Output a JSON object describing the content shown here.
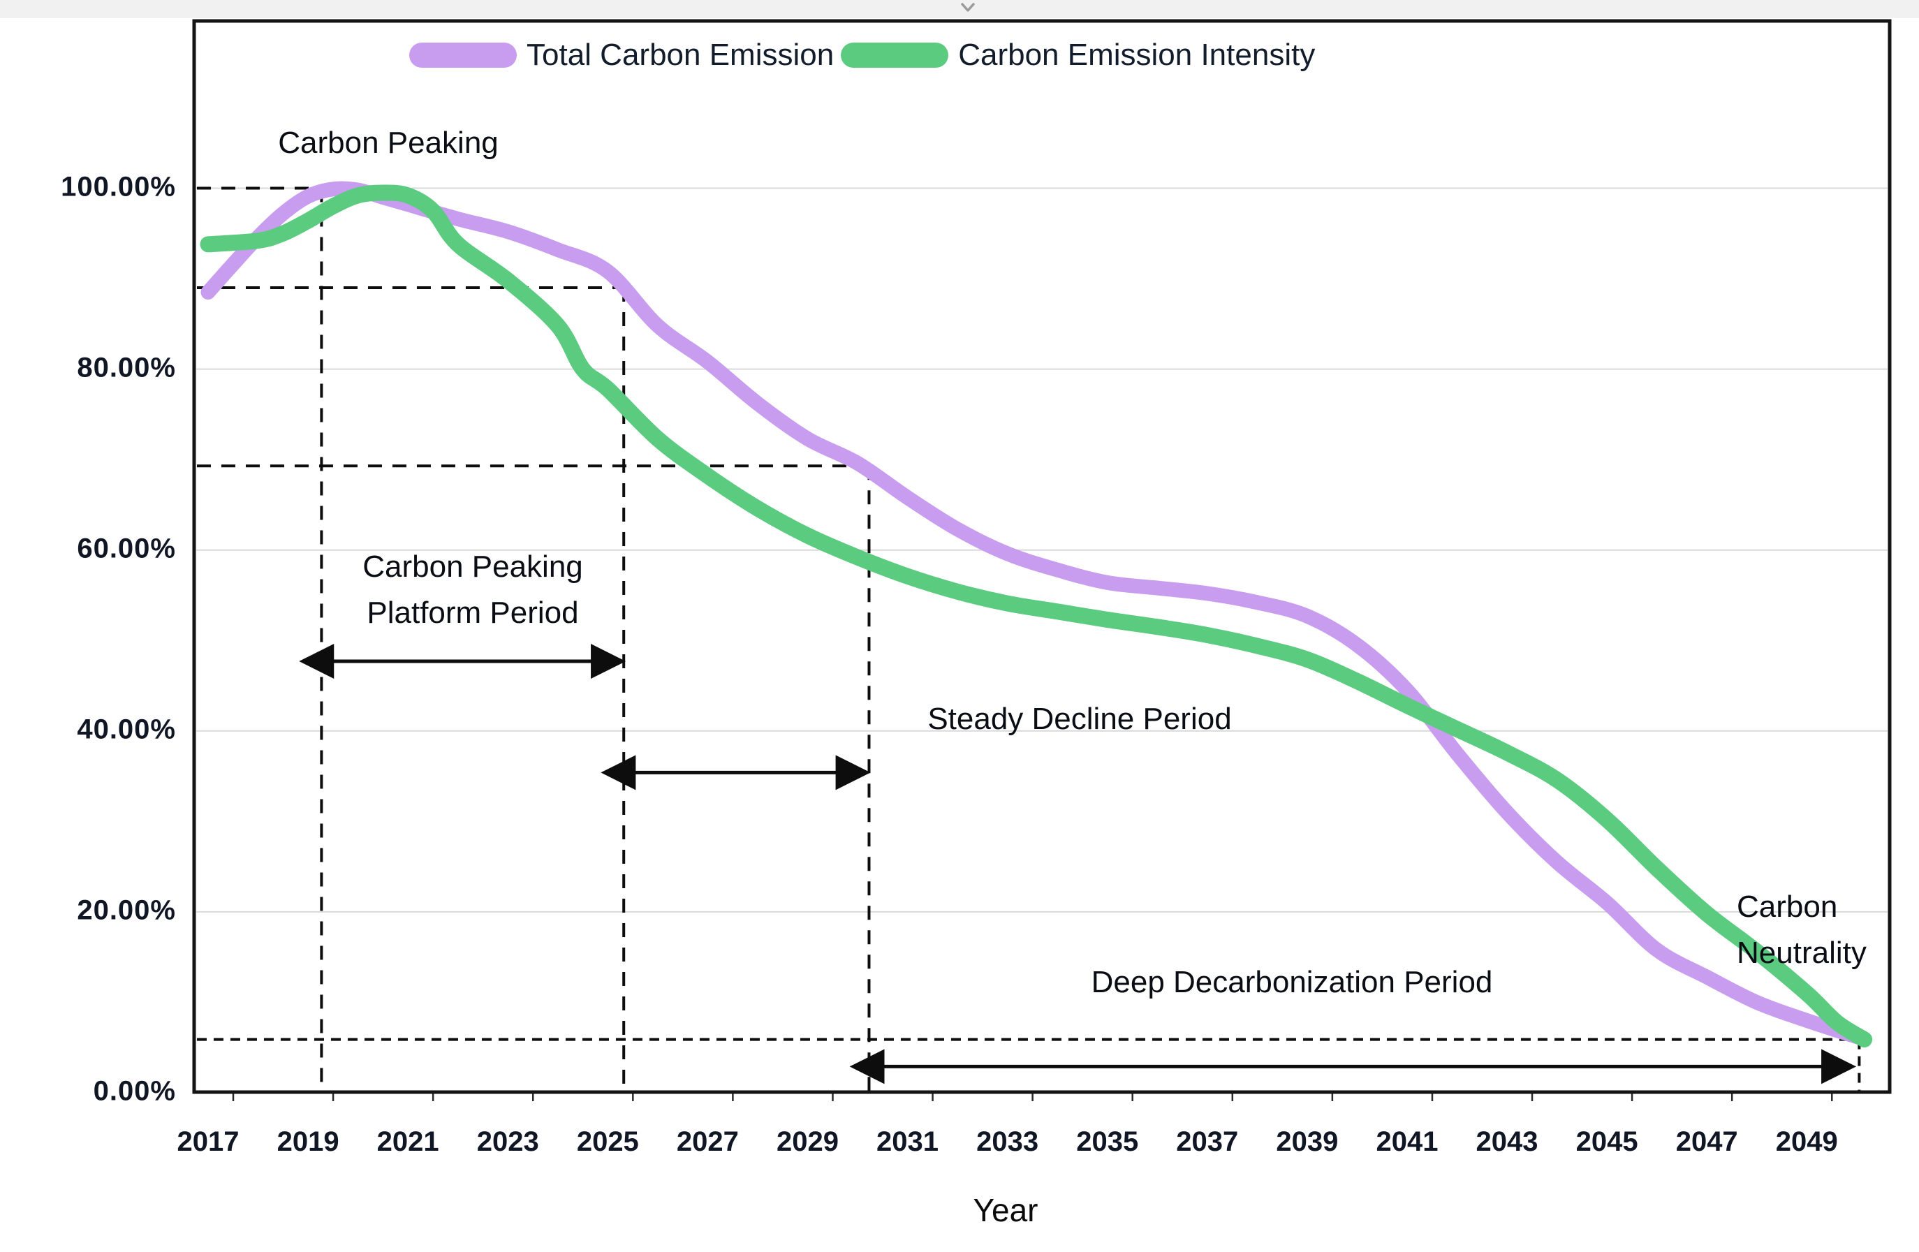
{
  "ui": {
    "chevron_icon": "chevron-down-icon"
  },
  "chart_data": {
    "type": "line",
    "title": "",
    "xlabel": "Year",
    "ylabel": "",
    "grid": "horizontal",
    "legend_position": "top-center",
    "xlim": [
      2016.72,
      2050.68
    ],
    "ylim": [
      0,
      118.5
    ],
    "x_ticks": [
      "2017",
      "2019",
      "2021",
      "2023",
      "2025",
      "2027",
      "2029",
      "2031",
      "2033",
      "2035",
      "2037",
      "2039",
      "2041",
      "2043",
      "2045",
      "2047",
      "2049"
    ],
    "x_tick_years": [
      2017,
      2019,
      2021,
      2023,
      2025,
      2027,
      2029,
      2031,
      2033,
      2035,
      2037,
      2039,
      2041,
      2043,
      2045,
      2047,
      2049
    ],
    "y_ticks": [
      "0.00%",
      "20.00%",
      "40.00%",
      "60.00%",
      "80.00%",
      "100.00%"
    ],
    "y_tick_values": [
      0,
      20,
      40,
      60,
      80,
      100
    ],
    "series": [
      {
        "name": "Total Carbon Emission",
        "color": "#c89df0",
        "points": [
          [
            2017,
            88.5
          ],
          [
            2017.5,
            91.6
          ],
          [
            2018,
            94.6
          ],
          [
            2018.5,
            97.2
          ],
          [
            2019,
            99.1
          ],
          [
            2019.5,
            99.9
          ],
          [
            2020,
            99.8
          ],
          [
            2020.5,
            99.0
          ],
          [
            2021,
            98.2
          ],
          [
            2022,
            96.6
          ],
          [
            2023,
            95.2
          ],
          [
            2024,
            93.2
          ],
          [
            2025,
            90.8
          ],
          [
            2026,
            84.8
          ],
          [
            2027,
            80.8
          ],
          [
            2028,
            76.2
          ],
          [
            2029,
            72.3
          ],
          [
            2030,
            69.6
          ],
          [
            2031,
            65.8
          ],
          [
            2032,
            62.3
          ],
          [
            2033,
            59.6
          ],
          [
            2034,
            57.8
          ],
          [
            2035,
            56.4
          ],
          [
            2036,
            55.8
          ],
          [
            2037,
            55.2
          ],
          [
            2038,
            54.2
          ],
          [
            2039,
            52.7
          ],
          [
            2040,
            49.5
          ],
          [
            2041,
            44.5
          ],
          [
            2042,
            37.5
          ],
          [
            2043,
            31.0
          ],
          [
            2044,
            25.5
          ],
          [
            2045,
            21.0
          ],
          [
            2046,
            15.8
          ],
          [
            2047,
            12.8
          ],
          [
            2048,
            10.0
          ],
          [
            2049,
            8.0
          ],
          [
            2050,
            6.2
          ]
        ]
      },
      {
        "name": "Carbon Emission Intensity",
        "color": "#5bcb80",
        "points": [
          [
            2017,
            93.8
          ],
          [
            2018,
            94.2
          ],
          [
            2018.5,
            95.0
          ],
          [
            2019,
            96.4
          ],
          [
            2019.5,
            98.0
          ],
          [
            2020,
            99.2
          ],
          [
            2020.5,
            99.5
          ],
          [
            2021,
            99.2
          ],
          [
            2021.5,
            97.5
          ],
          [
            2022,
            93.8
          ],
          [
            2023,
            89.8
          ],
          [
            2024,
            84.8
          ],
          [
            2024.5,
            80.0
          ],
          [
            2025,
            77.8
          ],
          [
            2026,
            72.3
          ],
          [
            2027,
            68.2
          ],
          [
            2028,
            64.6
          ],
          [
            2029,
            61.6
          ],
          [
            2030,
            59.2
          ],
          [
            2031,
            57.1
          ],
          [
            2032,
            55.4
          ],
          [
            2033,
            54.1
          ],
          [
            2034,
            53.2
          ],
          [
            2035,
            52.3
          ],
          [
            2036,
            51.5
          ],
          [
            2037,
            50.6
          ],
          [
            2038,
            49.4
          ],
          [
            2039,
            47.9
          ],
          [
            2040,
            45.5
          ],
          [
            2041,
            42.8
          ],
          [
            2042,
            40.2
          ],
          [
            2043,
            37.6
          ],
          [
            2044,
            34.6
          ],
          [
            2045,
            30.2
          ],
          [
            2046,
            24.8
          ],
          [
            2047,
            19.8
          ],
          [
            2048,
            15.6
          ],
          [
            2049,
            11.0
          ],
          [
            2049.6,
            7.8
          ],
          [
            2050.15,
            5.9
          ]
        ]
      }
    ],
    "reference_lines": {
      "horizontal": [
        {
          "value": 100,
          "x_from": 2016.72,
          "x_to": 2019.27,
          "dash": "20 15"
        },
        {
          "value": 89,
          "x_from": 2016.72,
          "x_to": 2025.32,
          "dash": "20 15"
        },
        {
          "value": 69.3,
          "x_from": 2016.72,
          "x_to": 2030.23,
          "dash": "20 15"
        },
        {
          "value": 5.9,
          "x_from": 2016.72,
          "x_to": 2050.05,
          "dash": "14 10"
        }
      ],
      "vertical": [
        {
          "year": 2019.27,
          "y_from": 100,
          "y_to": 0,
          "dash": "20 15"
        },
        {
          "year": 2025.32,
          "y_from": 89,
          "y_to": 0,
          "dash": "20 15"
        },
        {
          "year": 2030.23,
          "y_from": 69.3,
          "y_to": 0,
          "dash": "20 15"
        },
        {
          "year": 2050.05,
          "y_from": 5.9,
          "y_to": 0,
          "dash": "14 10"
        }
      ]
    },
    "period_arrows": [
      {
        "id": "platform-arrow",
        "x_from": 2019.38,
        "x_to": 2025.22,
        "y": 47.7
      },
      {
        "id": "steady-arrow",
        "x_from": 2025.42,
        "x_to": 2030.12,
        "y": 35.4
      },
      {
        "id": "deep-arrow",
        "x_from": 2030.4,
        "x_to": 2049.85,
        "y": 2.9
      }
    ],
    "annotations": [
      {
        "id": "carbon-peaking",
        "lines": [
          "Carbon Peaking"
        ]
      },
      {
        "id": "platform-period",
        "lines": [
          "Carbon Peaking",
          "Platform Period"
        ]
      },
      {
        "id": "steady-decline",
        "lines": [
          "Steady Decline Period"
        ]
      },
      {
        "id": "deep-decarbonization",
        "lines": [
          "Deep Decarbonization Period"
        ]
      },
      {
        "id": "carbon-neutrality",
        "lines": [
          "Carbon",
          "Neutrality"
        ]
      }
    ]
  },
  "legend": {
    "items": [
      {
        "label": "Total Carbon Emission",
        "color": "#c89df0"
      },
      {
        "label": "Carbon Emission Intensity",
        "color": "#5bcb80"
      }
    ]
  },
  "style": {
    "grid_color": "#d9d9d9",
    "frame_color": "#141414",
    "dash_color": "#0d0d0d",
    "arrow_color": "#0d0d0d"
  }
}
